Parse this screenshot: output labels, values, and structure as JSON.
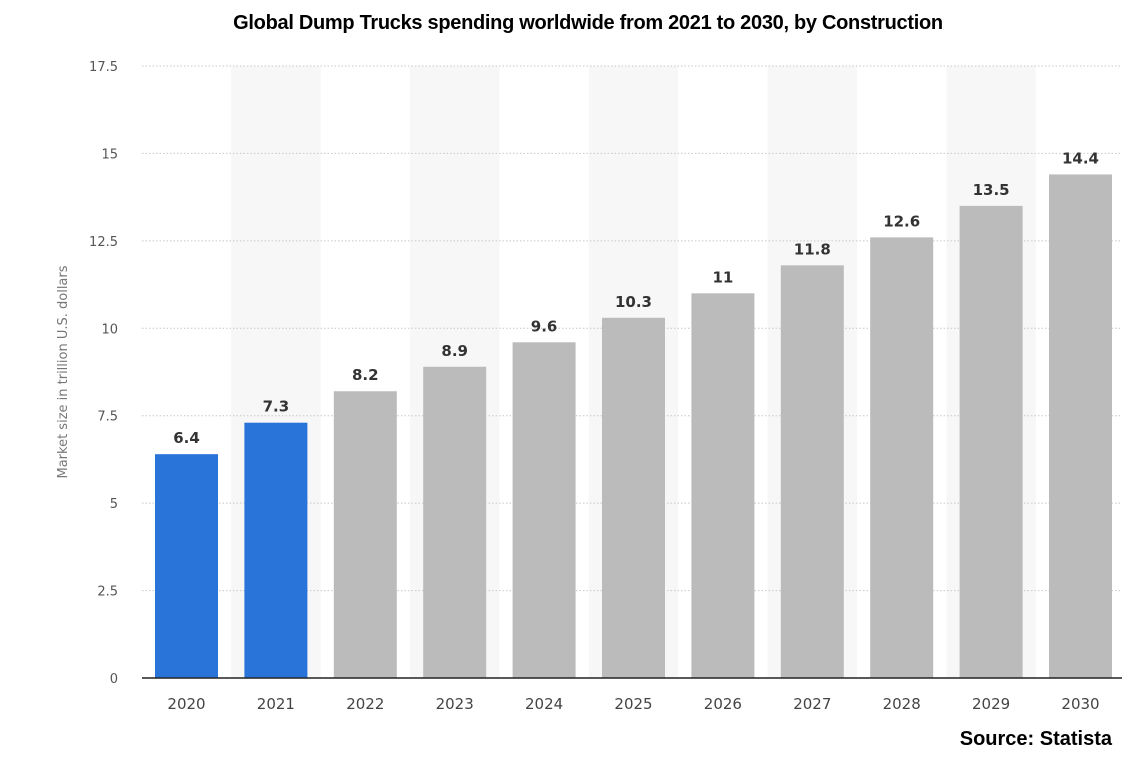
{
  "chart_data": {
    "type": "bar",
    "title": "Global Dump Trucks spending worldwide from 2021 to 2030, by Construction",
    "xlabel": "",
    "ylabel": "Market size in trillion U.S. dollars",
    "ylim": [
      0,
      17.5
    ],
    "yticks": [
      0,
      2.5,
      5,
      7.5,
      10,
      12.5,
      15,
      17.5
    ],
    "ytick_labels": [
      "0",
      "2.5",
      "5",
      "7.5",
      "10",
      "12.5",
      "15",
      "17.5"
    ],
    "categories": [
      "2020",
      "2021",
      "2022",
      "2023",
      "2024",
      "2025",
      "2026",
      "2027",
      "2028",
      "2029",
      "2030"
    ],
    "values": [
      6.4,
      7.3,
      8.2,
      8.9,
      9.6,
      10.3,
      11,
      11.8,
      12.6,
      13.5,
      14.4
    ],
    "data_labels": [
      "6.4",
      "7.3",
      "8.2",
      "8.9",
      "9.6",
      "10.3",
      "11",
      "11.8",
      "12.6",
      "13.5",
      "14.4"
    ],
    "bar_colors": [
      "#2874d9",
      "#2874d9",
      "#bbbbbb",
      "#bbbbbb",
      "#bbbbbb",
      "#bbbbbb",
      "#bbbbbb",
      "#bbbbbb",
      "#bbbbbb",
      "#bbbbbb",
      "#bbbbbb"
    ],
    "grid": true,
    "legend": "none",
    "source": "Source: Statista"
  }
}
